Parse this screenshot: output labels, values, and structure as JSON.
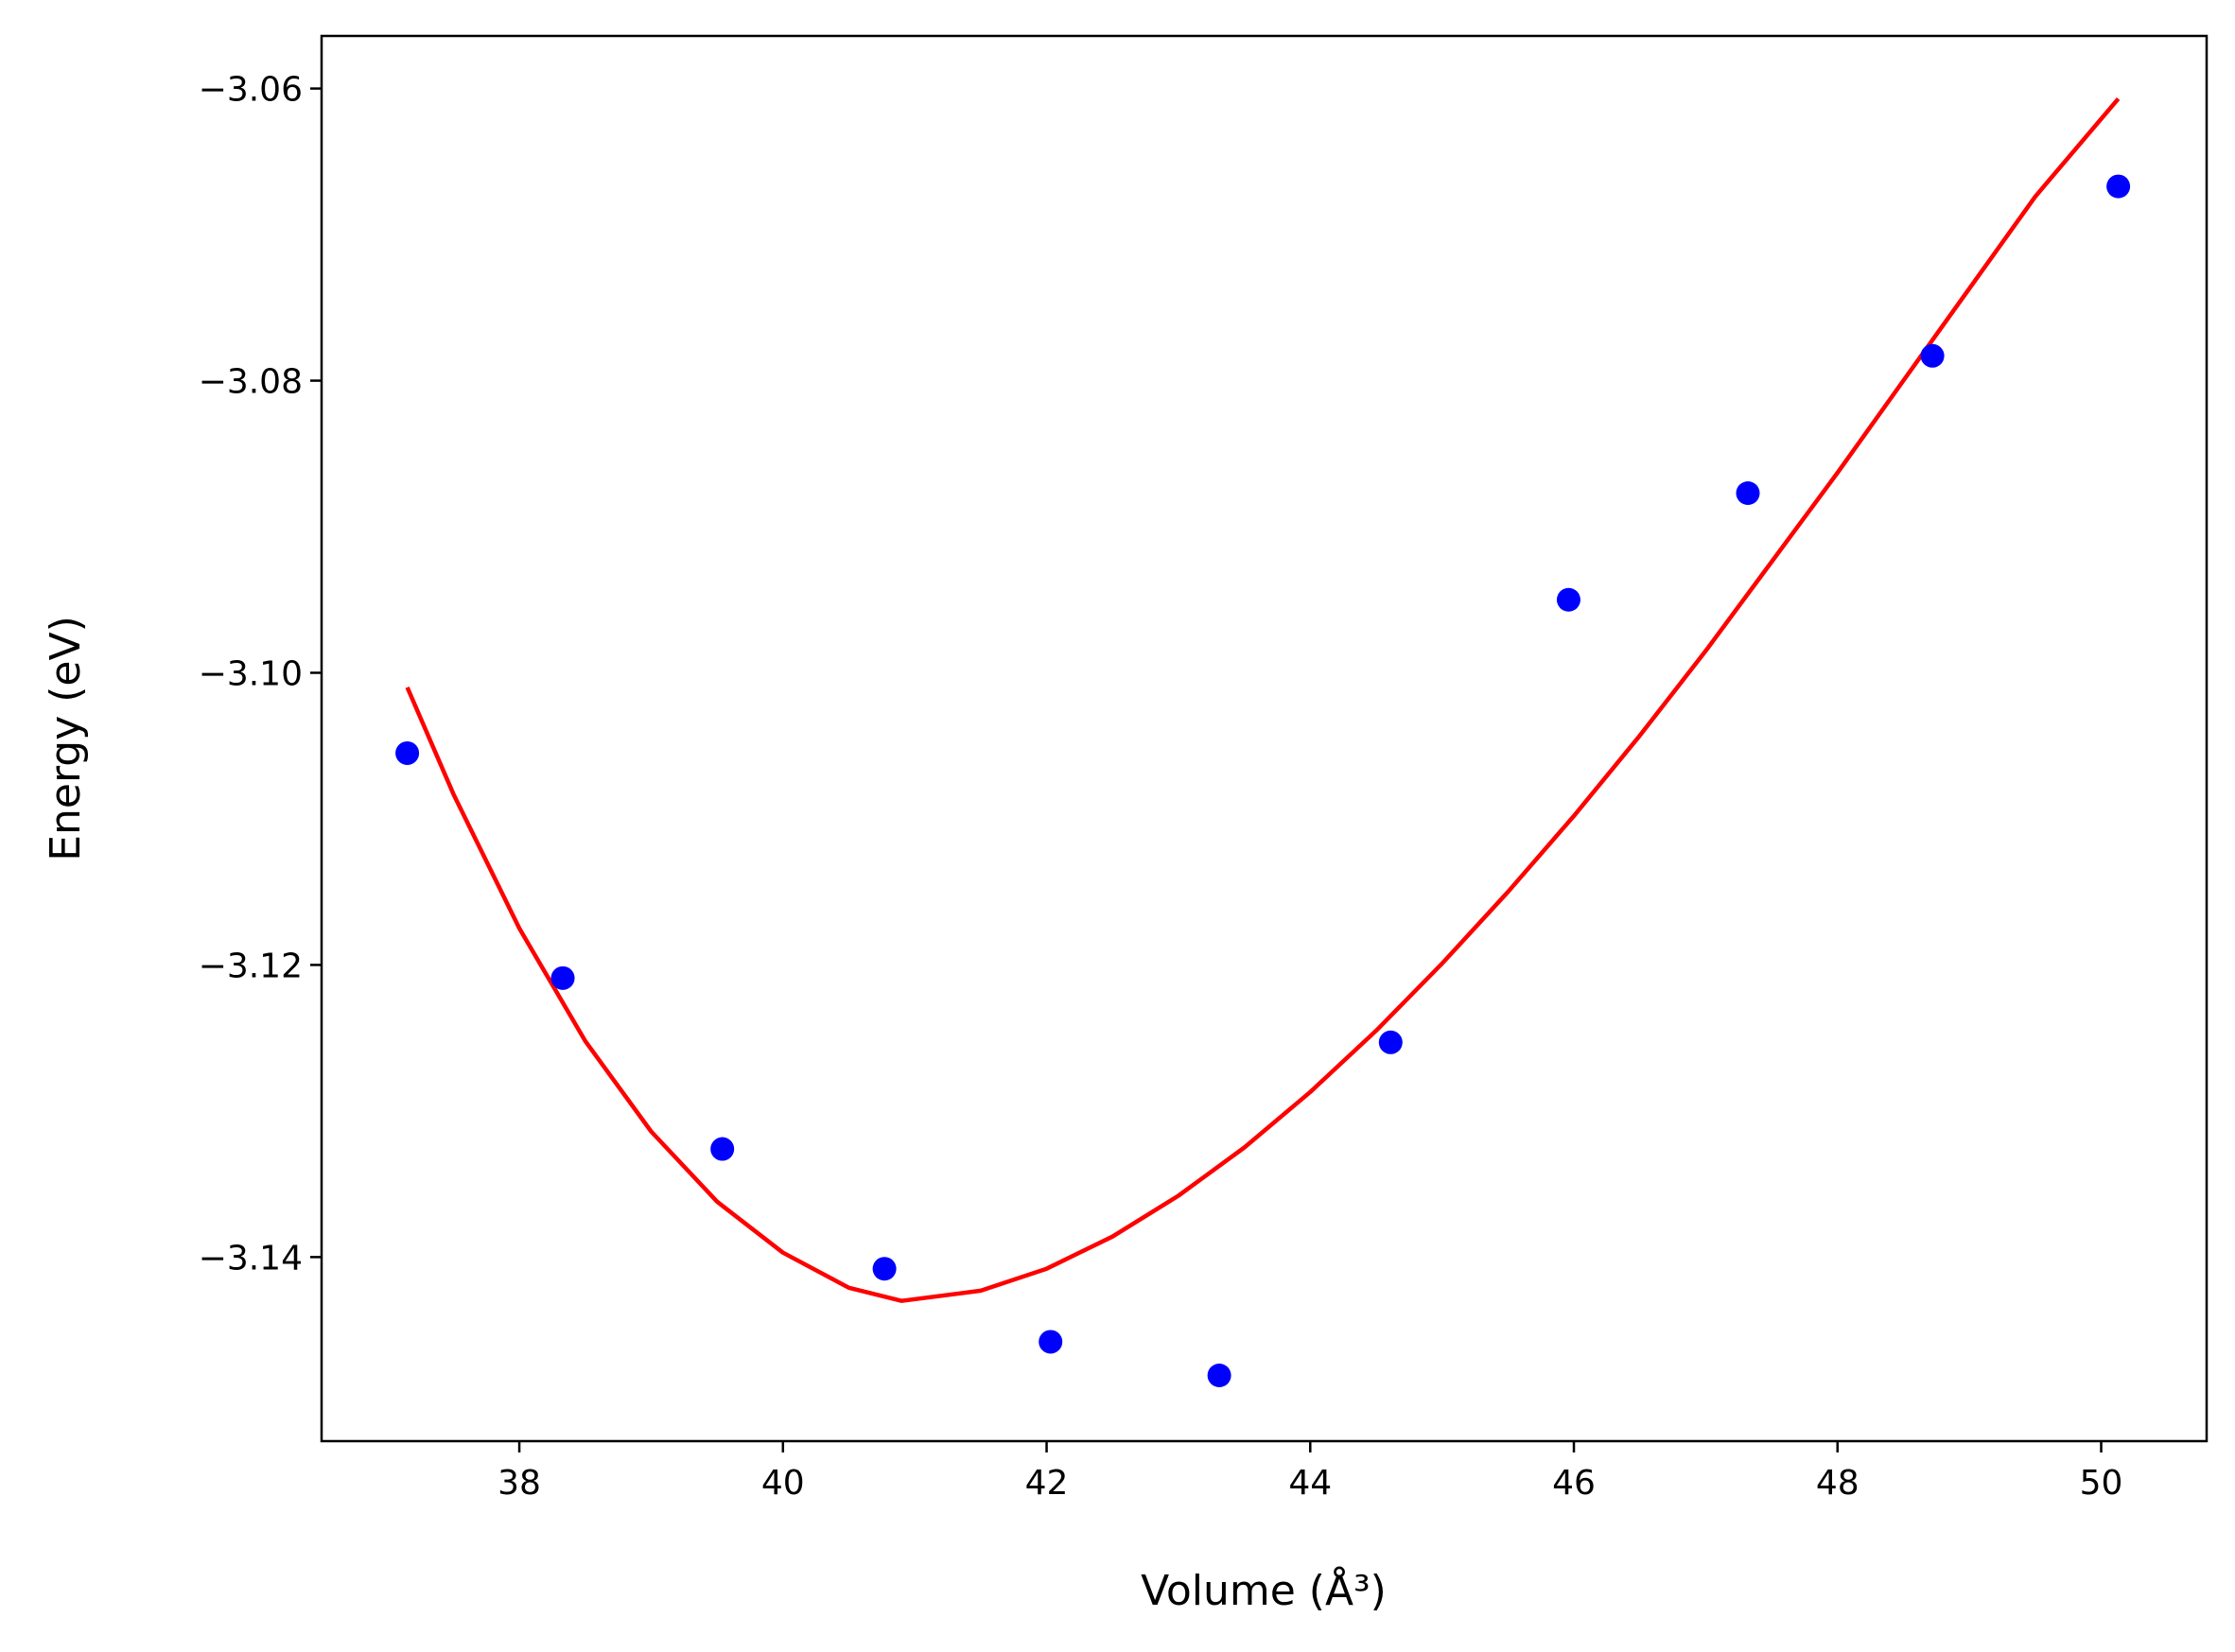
{
  "chart_data": {
    "type": "scatter",
    "xlabel": "Volume (Å³)",
    "ylabel": "Energy (eV)",
    "xlim": [
      36.5,
      50.8
    ],
    "ylim": [
      -3.1526,
      -3.0564
    ],
    "xticks": [
      38,
      40,
      42,
      44,
      46,
      48,
      50
    ],
    "xtick_labels": [
      "38",
      "40",
      "42",
      "44",
      "46",
      "48",
      "50"
    ],
    "yticks": [
      -3.06,
      -3.08,
      -3.1,
      -3.12,
      -3.14
    ],
    "ytick_labels": [
      "−3.06",
      "−3.08",
      "−3.10",
      "−3.12",
      "−3.14"
    ],
    "grid": false,
    "series": [
      {
        "kind": "scatter",
        "color": "#0000ff",
        "x": [
          37.15,
          38.33,
          39.54,
          40.77,
          42.03,
          43.31,
          44.61,
          45.96,
          47.32,
          48.72,
          50.13
        ],
        "y": [
          -3.1055,
          -3.1209,
          -3.1326,
          -3.1408,
          -3.1458,
          -3.1481,
          -3.1253,
          -3.095,
          -3.0877,
          -3.0783,
          -3.0667
        ]
      },
      {
        "kind": "line",
        "color": "#ff0000",
        "x": [
          37.15,
          37.5,
          38.0,
          38.5,
          39.0,
          39.5,
          40.0,
          40.5,
          40.9,
          41.5,
          42.0,
          42.5,
          43.0,
          43.5,
          44.0,
          44.5,
          45.0,
          45.5,
          46.0,
          46.5,
          47.0,
          47.5,
          48.0,
          48.5,
          49.0,
          49.5,
          50.13
        ],
        "y": [
          -3.101,
          -3.1083,
          -3.1175,
          -3.1252,
          -3.1314,
          -3.1362,
          -3.1397,
          -3.1421,
          -3.143,
          -3.1423,
          -3.1408,
          -3.1386,
          -3.1358,
          -3.1325,
          -3.1287,
          -3.1245,
          -3.1199,
          -3.115,
          -3.1098,
          -3.1043,
          -3.0985,
          -3.0924,
          -3.0863,
          -3.08,
          -3.0737,
          -3.0674,
          -3.0607
        ]
      }
    ]
  }
}
